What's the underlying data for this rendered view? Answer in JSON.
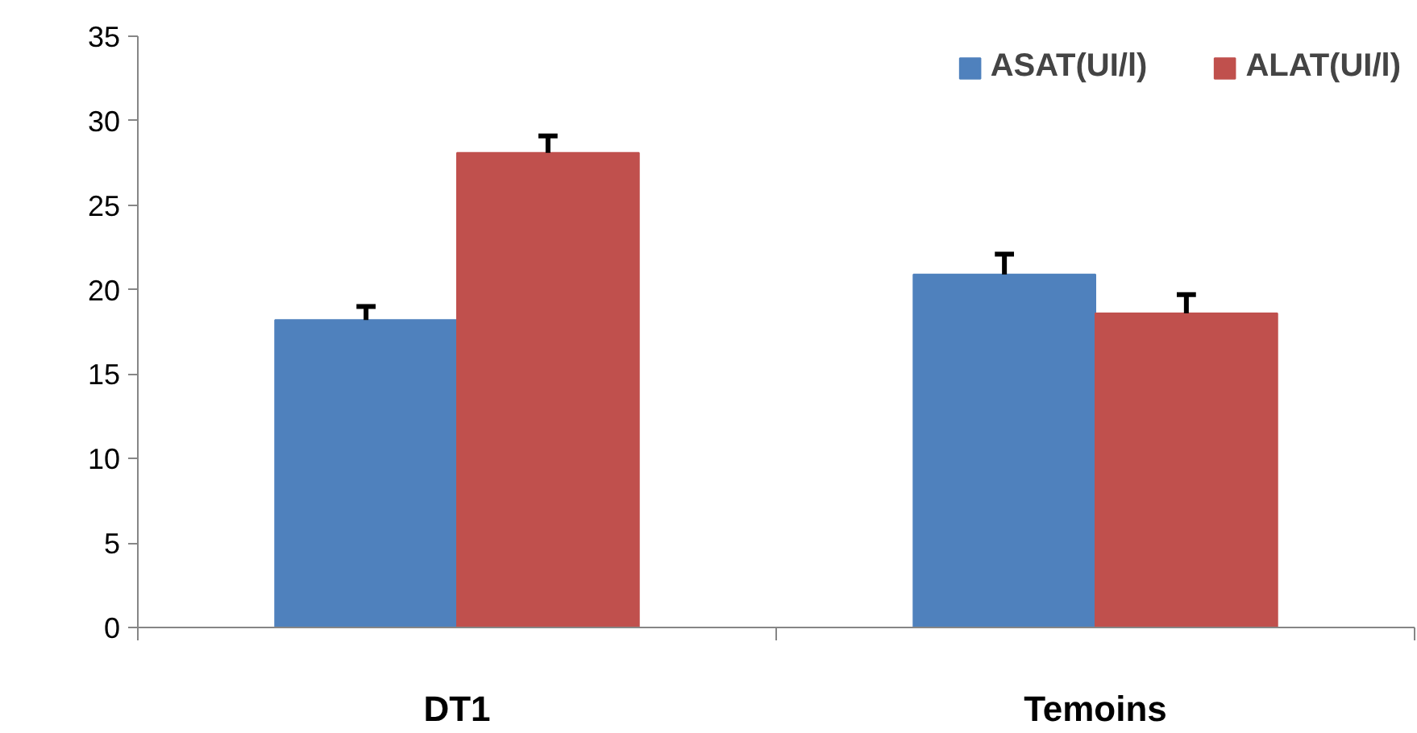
{
  "chart_data": {
    "type": "bar",
    "categories": [
      "DT1",
      "Temoins"
    ],
    "series": [
      {
        "name": "ASAT(UI/l)",
        "color": "#4f81bd",
        "values": [
          18.2,
          20.9
        ],
        "errors": [
          [
            18.2,
            19.0
          ],
          [
            20.9,
            22.1
          ]
        ]
      },
      {
        "name": "ALAT(UI/l)",
        "color": "#c0504d",
        "values": [
          28.1,
          18.6
        ],
        "errors": [
          [
            28.1,
            29.1
          ],
          [
            18.6,
            19.7
          ]
        ]
      }
    ],
    "ylim": [
      0,
      35
    ],
    "yticks": [
      0,
      5,
      10,
      15,
      20,
      25,
      30,
      35
    ],
    "grid": false,
    "legend": "top right"
  }
}
